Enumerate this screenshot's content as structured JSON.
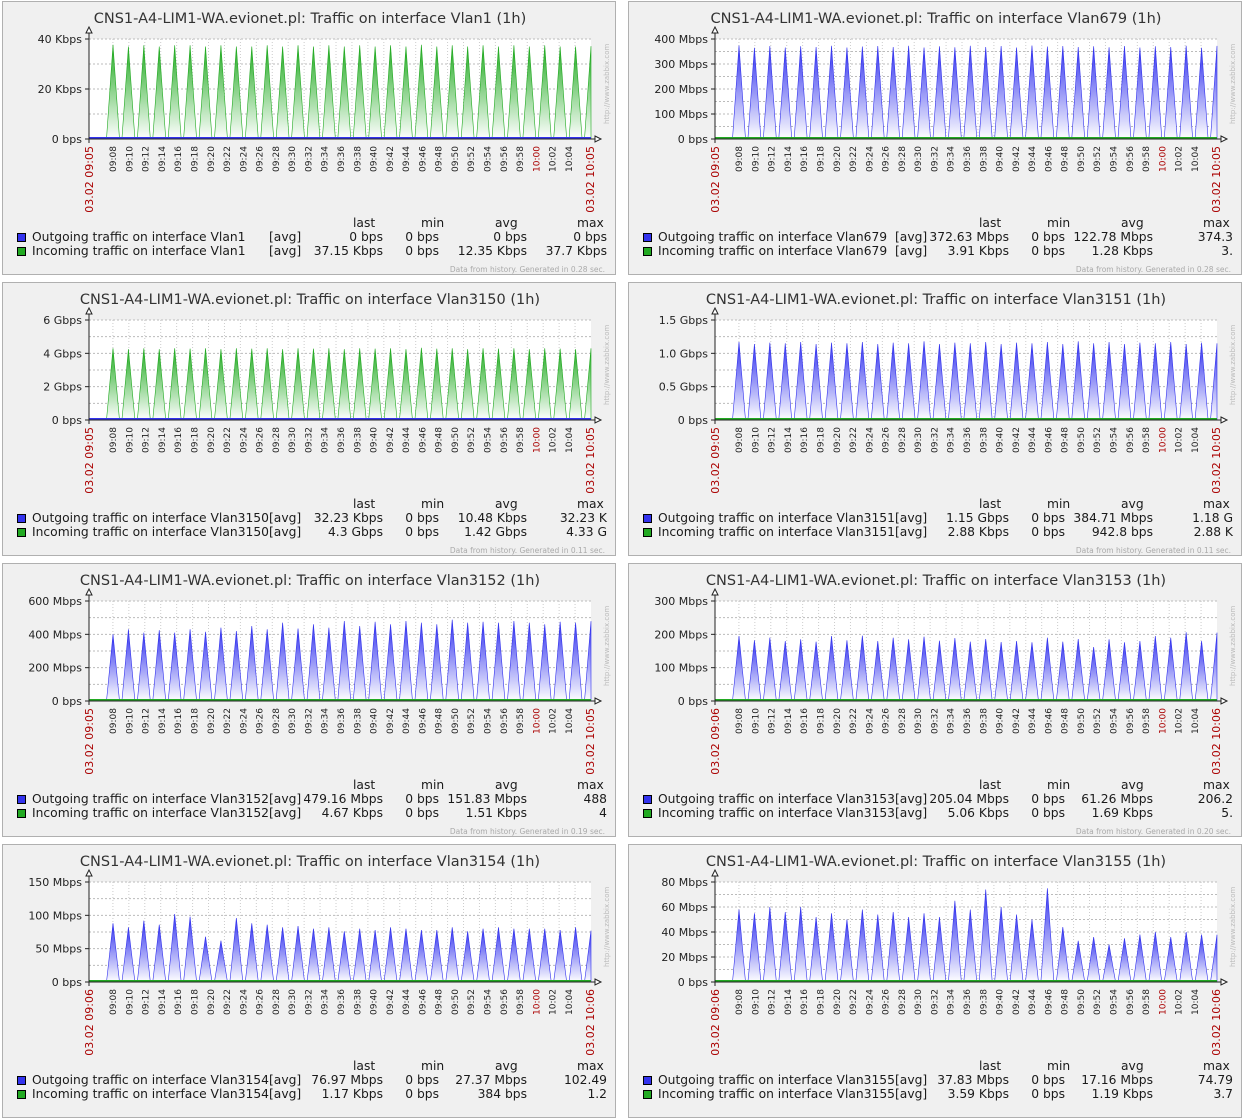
{
  "colors": {
    "outgoing": "#3333ee",
    "incoming": "#22aa22",
    "axis_red": "#aa0000"
  },
  "legend_headers": {
    "last": "last",
    "min": "min",
    "avg": "avg",
    "max": "max"
  },
  "x_ticks": [
    "09:08",
    "09:10",
    "09:12",
    "09:14",
    "09:16",
    "09:18",
    "09:20",
    "09:22",
    "09:24",
    "09:26",
    "09:28",
    "09:30",
    "09:32",
    "09:34",
    "09:36",
    "09:38",
    "09:40",
    "09:42",
    "09:44",
    "09:46",
    "09:48",
    "09:50",
    "09:52",
    "09:54",
    "09:56",
    "09:58",
    "10:00",
    "10:02",
    "10:04"
  ],
  "watermark": "http://www.zabbix.com",
  "panels": [
    {
      "title": "CNS1-A4-LIM1-WA.evionet.pl: Traffic on interface Vlan1 (1h)",
      "start_label": "03.02 09:05",
      "end_label": "03.02 10:05",
      "legend": [
        {
          "label": "Outgoing traffic on interface Vlan1",
          "func": "[avg]",
          "last": "0 bps",
          "min": "0 bps",
          "avg": "0 bps",
          "max": "0 bps"
        },
        {
          "label": "Incoming traffic on interface Vlan1",
          "func": "[avg]",
          "last": "37.15 Kbps",
          "min": "0 bps",
          "avg": "12.35 Kbps",
          "max": "37.7 Kbps"
        }
      ],
      "footer": "Data from history. Generated in 0.28 sec."
    },
    {
      "title": "CNS1-A4-LIM1-WA.evionet.pl: Traffic on interface Vlan679 (1h)",
      "start_label": "03.02 09:05",
      "end_label": "03.02 10:05",
      "legend": [
        {
          "label": "Outgoing traffic on interface Vlan679",
          "func": "[avg]",
          "last": "372.63 Mbps",
          "min": "0 bps",
          "avg": "122.78 Mbps",
          "max": "374.3"
        },
        {
          "label": "Incoming traffic on interface Vlan679",
          "func": "[avg]",
          "last": "3.91 Kbps",
          "min": "0 bps",
          "avg": "1.28 Kbps",
          "max": "3."
        }
      ],
      "footer": "Data from history. Generated in 0.28 sec."
    },
    {
      "title": "CNS1-A4-LIM1-WA.evionet.pl: Traffic on interface Vlan3150 (1h)",
      "start_label": "03.02 09:05",
      "end_label": "03.02 10:05",
      "legend": [
        {
          "label": "Outgoing traffic on interface Vlan3150",
          "func": "[avg]",
          "last": "32.23 Kbps",
          "min": "0 bps",
          "avg": "10.48 Kbps",
          "max": "32.23 K"
        },
        {
          "label": "Incoming traffic on interface Vlan3150",
          "func": "[avg]",
          "last": "4.3 Gbps",
          "min": "0 bps",
          "avg": "1.42 Gbps",
          "max": "4.33 G"
        }
      ],
      "footer": "Data from history. Generated in 0.11 sec."
    },
    {
      "title": "CNS1-A4-LIM1-WA.evionet.pl: Traffic on interface Vlan3151 (1h)",
      "start_label": "03.02 09:05",
      "end_label": "03.02 10:05",
      "legend": [
        {
          "label": "Outgoing traffic on interface Vlan3151",
          "func": "[avg]",
          "last": "1.15 Gbps",
          "min": "0 bps",
          "avg": "384.71 Mbps",
          "max": "1.18 G"
        },
        {
          "label": "Incoming traffic on interface Vlan3151",
          "func": "[avg]",
          "last": "2.88 Kbps",
          "min": "0 bps",
          "avg": "942.8 bps",
          "max": "2.88 K"
        }
      ],
      "footer": "Data from history. Generated in 0.11 sec."
    },
    {
      "title": "CNS1-A4-LIM1-WA.evionet.pl: Traffic on interface Vlan3152 (1h)",
      "start_label": "03.02 09:05",
      "end_label": "03.02 10:05",
      "legend": [
        {
          "label": "Outgoing traffic on interface Vlan3152",
          "func": "[avg]",
          "last": "479.16 Mbps",
          "min": "0 bps",
          "avg": "151.83 Mbps",
          "max": "488"
        },
        {
          "label": "Incoming traffic on interface Vlan3152",
          "func": "[avg]",
          "last": "4.67 Kbps",
          "min": "0 bps",
          "avg": "1.51 Kbps",
          "max": "4"
        }
      ],
      "footer": "Data from history. Generated in 0.19 sec."
    },
    {
      "title": "CNS1-A4-LIM1-WA.evionet.pl: Traffic on interface Vlan3153 (1h)",
      "start_label": "03.02 09:06",
      "end_label": "03.02 10:06",
      "legend": [
        {
          "label": "Outgoing traffic on interface Vlan3153",
          "func": "[avg]",
          "last": "205.04 Mbps",
          "min": "0 bps",
          "avg": "61.26 Mbps",
          "max": "206.2"
        },
        {
          "label": "Incoming traffic on interface Vlan3153",
          "func": "[avg]",
          "last": "5.06 Kbps",
          "min": "0 bps",
          "avg": "1.69 Kbps",
          "max": "5."
        }
      ],
      "footer": "Data from history. Generated in 0.20 sec."
    },
    {
      "title": "CNS1-A4-LIM1-WA.evionet.pl: Traffic on interface Vlan3154 (1h)",
      "start_label": "03.02 09:06",
      "end_label": "03.02 10:06",
      "legend": [
        {
          "label": "Outgoing traffic on interface Vlan3154",
          "func": "[avg]",
          "last": "76.97 Mbps",
          "min": "0 bps",
          "avg": "27.37 Mbps",
          "max": "102.49"
        },
        {
          "label": "Incoming traffic on interface Vlan3154",
          "func": "[avg]",
          "last": "1.17 Kbps",
          "min": "0 bps",
          "avg": "384 bps",
          "max": "1.2"
        }
      ],
      "footer": ""
    },
    {
      "title": "CNS1-A4-LIM1-WA.evionet.pl: Traffic on interface Vlan3155 (1h)",
      "start_label": "03.02 09:06",
      "end_label": "03.02 10:06",
      "legend": [
        {
          "label": "Outgoing traffic on interface Vlan3155",
          "func": "[avg]",
          "last": "37.83 Mbps",
          "min": "0 bps",
          "avg": "17.16 Mbps",
          "max": "74.79"
        },
        {
          "label": "Incoming traffic on interface Vlan3155",
          "func": "[avg]",
          "last": "3.59 Kbps",
          "min": "0 bps",
          "avg": "1.19 Kbps",
          "max": "3.7"
        }
      ],
      "footer": ""
    }
  ],
  "chart_data": [
    {
      "type": "area",
      "title": "CNS1-A4-LIM1-WA.evionet.pl: Traffic on interface Vlan1 (1h)",
      "y_unit": "Kbps",
      "ylim": [
        0,
        40
      ],
      "yticks": [
        {
          "value": 0,
          "label": "0 bps"
        },
        {
          "value": 20,
          "label": "20 Kbps"
        },
        {
          "value": 40,
          "label": "40 Kbps"
        }
      ],
      "peak_series": "incoming",
      "peaks": [
        37.7,
        37,
        37.5,
        37,
        37.5,
        37.5,
        37,
        37.5,
        37,
        37,
        37.5,
        37,
        37.5,
        37,
        37.5,
        37,
        37.5,
        37,
        37.5,
        37,
        37.7,
        37,
        37.5,
        37,
        37.5,
        37,
        37.5,
        37,
        37.5,
        37,
        37,
        37.15
      ],
      "series": [
        {
          "name": "Outgoing traffic on interface Vlan1",
          "key": "outgoing"
        },
        {
          "name": "Incoming traffic on interface Vlan1",
          "key": "incoming"
        }
      ]
    },
    {
      "type": "area",
      "title": "CNS1-A4-LIM1-WA.evionet.pl: Traffic on interface Vlan679 (1h)",
      "y_unit": "Mbps",
      "ylim": [
        0,
        400
      ],
      "yticks": [
        {
          "value": 0,
          "label": "0 bps"
        },
        {
          "value": 100,
          "label": "100 Mbps"
        },
        {
          "value": 200,
          "label": "200 Mbps"
        },
        {
          "value": 300,
          "label": "300 Mbps"
        },
        {
          "value": 400,
          "label": "400 Mbps"
        }
      ],
      "peak_series": "outgoing",
      "peaks": [
        374,
        365,
        372,
        366,
        371,
        368,
        373,
        366,
        370,
        372,
        368,
        373,
        366,
        371,
        367,
        373,
        368,
        372,
        366,
        374,
        370,
        372,
        368,
        371,
        367,
        372,
        366,
        371,
        368,
        373,
        365,
        372.63
      ],
      "series": [
        {
          "name": "Outgoing traffic on interface Vlan679",
          "key": "outgoing"
        },
        {
          "name": "Incoming traffic on interface Vlan679",
          "key": "incoming"
        }
      ]
    },
    {
      "type": "area",
      "title": "CNS1-A4-LIM1-WA.evionet.pl: Traffic on interface Vlan3150 (1h)",
      "y_unit": "Gbps",
      "ylim": [
        0,
        6
      ],
      "yticks": [
        {
          "value": 0,
          "label": "0 bps"
        },
        {
          "value": 2,
          "label": "2 Gbps"
        },
        {
          "value": 4,
          "label": "4 Gbps"
        },
        {
          "value": 6,
          "label": "6 Gbps"
        }
      ],
      "peak_series": "incoming",
      "peaks": [
        4.3,
        4.25,
        4.3,
        4.25,
        4.3,
        4.28,
        4.3,
        4.25,
        4.3,
        4.28,
        4.3,
        4.25,
        4.3,
        4.28,
        4.3,
        4.25,
        4.3,
        4.28,
        4.3,
        4.25,
        4.33,
        4.28,
        4.3,
        4.25,
        4.3,
        4.28,
        4.3,
        4.25,
        4.3,
        4.28,
        4.25,
        4.3
      ],
      "series": [
        {
          "name": "Outgoing traffic on interface Vlan3150",
          "key": "outgoing"
        },
        {
          "name": "Incoming traffic on interface Vlan3150",
          "key": "incoming"
        }
      ]
    },
    {
      "type": "area",
      "title": "CNS1-A4-LIM1-WA.evionet.pl: Traffic on interface Vlan3151 (1h)",
      "y_unit": "Gbps",
      "ylim": [
        0,
        1.5
      ],
      "yticks": [
        {
          "value": 0,
          "label": "0 bps"
        },
        {
          "value": 0.5,
          "label": "0.5 Gbps"
        },
        {
          "value": 1.0,
          "label": "1.0 Gbps"
        },
        {
          "value": 1.5,
          "label": "1.5 Gbps"
        }
      ],
      "peak_series": "outgoing",
      "peaks": [
        1.17,
        1.14,
        1.16,
        1.15,
        1.17,
        1.14,
        1.16,
        1.15,
        1.17,
        1.14,
        1.16,
        1.15,
        1.18,
        1.14,
        1.16,
        1.15,
        1.17,
        1.14,
        1.16,
        1.15,
        1.17,
        1.14,
        1.18,
        1.15,
        1.17,
        1.14,
        1.16,
        1.15,
        1.17,
        1.14,
        1.16,
        1.15
      ],
      "series": [
        {
          "name": "Outgoing traffic on interface Vlan3151",
          "key": "outgoing"
        },
        {
          "name": "Incoming traffic on interface Vlan3151",
          "key": "incoming"
        }
      ]
    },
    {
      "type": "area",
      "title": "CNS1-A4-LIM1-WA.evionet.pl: Traffic on interface Vlan3152 (1h)",
      "y_unit": "Mbps",
      "ylim": [
        0,
        600
      ],
      "yticks": [
        {
          "value": 0,
          "label": "0 bps"
        },
        {
          "value": 200,
          "label": "200 Mbps"
        },
        {
          "value": 400,
          "label": "400 Mbps"
        },
        {
          "value": 600,
          "label": "600 Mbps"
        }
      ],
      "peak_series": "outgoing",
      "peaks": [
        400,
        430,
        410,
        425,
        410,
        430,
        415,
        440,
        420,
        450,
        430,
        470,
        435,
        460,
        440,
        480,
        450,
        475,
        460,
        480,
        470,
        460,
        488,
        470,
        475,
        470,
        480,
        470,
        460,
        475,
        470,
        479.16
      ],
      "series": [
        {
          "name": "Outgoing traffic on interface Vlan3152",
          "key": "outgoing"
        },
        {
          "name": "Incoming traffic on interface Vlan3152",
          "key": "incoming"
        }
      ]
    },
    {
      "type": "area",
      "title": "CNS1-A4-LIM1-WA.evionet.pl: Traffic on interface Vlan3153 (1h)",
      "y_unit": "Mbps",
      "ylim": [
        0,
        300
      ],
      "yticks": [
        {
          "value": 0,
          "label": "0 bps"
        },
        {
          "value": 100,
          "label": "100 Mbps"
        },
        {
          "value": 200,
          "label": "200 Mbps"
        },
        {
          "value": 300,
          "label": "300 Mbps"
        }
      ],
      "peak_series": "outgoing",
      "peaks": [
        195,
        182,
        190,
        180,
        185,
        178,
        195,
        182,
        196,
        180,
        190,
        185,
        193,
        181,
        189,
        178,
        186,
        177,
        180,
        176,
        190,
        178,
        186,
        162,
        185,
        176,
        180,
        195,
        190,
        206,
        180,
        205.04
      ],
      "series": [
        {
          "name": "Outgoing traffic on interface Vlan3153",
          "key": "outgoing"
        },
        {
          "name": "Incoming traffic on interface Vlan3153",
          "key": "incoming"
        }
      ]
    },
    {
      "type": "area",
      "title": "CNS1-A4-LIM1-WA.evionet.pl: Traffic on interface Vlan3154 (1h)",
      "y_unit": "Mbps",
      "ylim": [
        0,
        150
      ],
      "yticks": [
        {
          "value": 0,
          "label": "0 bps"
        },
        {
          "value": 50,
          "label": "50 Mbps"
        },
        {
          "value": 100,
          "label": "100 Mbps"
        },
        {
          "value": 150,
          "label": "150 Mbps"
        }
      ],
      "peak_series": "outgoing",
      "peaks": [
        88,
        82,
        92,
        86,
        102,
        98,
        68,
        62,
        96,
        88,
        86,
        82,
        84,
        80,
        82,
        76,
        80,
        78,
        82,
        80,
        78,
        78,
        82,
        76,
        80,
        82,
        80,
        80,
        80,
        78,
        82,
        76.97
      ],
      "series": [
        {
          "name": "Outgoing traffic on interface Vlan3154",
          "key": "outgoing"
        },
        {
          "name": "Incoming traffic on interface Vlan3154",
          "key": "incoming"
        }
      ]
    },
    {
      "type": "area",
      "title": "CNS1-A4-LIM1-WA.evionet.pl: Traffic on interface Vlan3155 (1h)",
      "y_unit": "Mbps",
      "ylim": [
        0,
        80
      ],
      "yticks": [
        {
          "value": 0,
          "label": "0 bps"
        },
        {
          "value": 20,
          "label": "20 Mbps"
        },
        {
          "value": 40,
          "label": "40 Mbps"
        },
        {
          "value": 60,
          "label": "60 Mbps"
        },
        {
          "value": 80,
          "label": "80 Mbps"
        }
      ],
      "peak_series": "outgoing",
      "peaks": [
        58,
        55,
        60,
        56,
        60,
        52,
        55,
        50,
        58,
        54,
        56,
        52,
        55,
        52,
        65,
        58,
        74,
        60,
        54,
        50,
        75,
        44,
        33,
        36,
        30,
        35,
        38,
        40,
        36,
        40,
        38,
        37.83
      ],
      "series": [
        {
          "name": "Outgoing traffic on interface Vlan3155",
          "key": "outgoing"
        },
        {
          "name": "Incoming traffic on interface Vlan3155",
          "key": "incoming"
        }
      ]
    }
  ]
}
